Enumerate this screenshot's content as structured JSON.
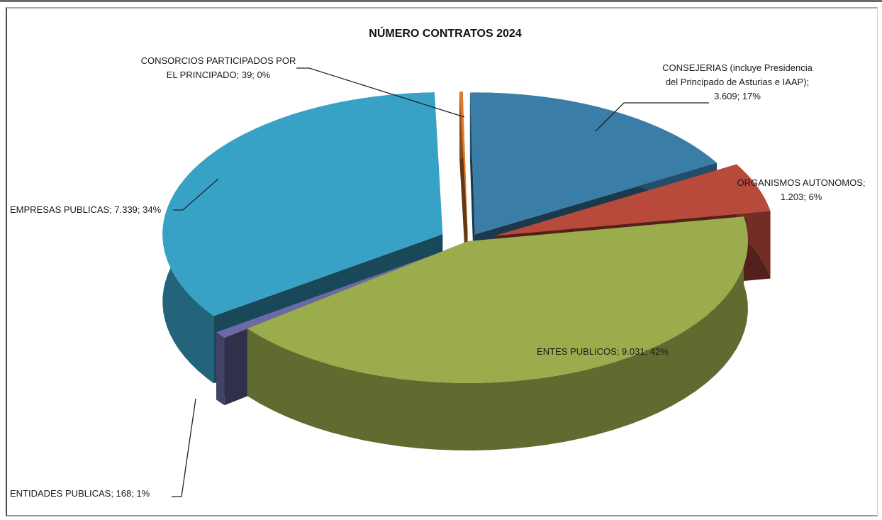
{
  "chart_data": {
    "type": "pie",
    "title": "NÚMERO CONTRATOS 2024",
    "slices": [
      {
        "label_lines": [
          "CONSEJERIAS (incluye Presidencia",
          "del Principado de Asturias e IAAP);",
          "3.609; 17%"
        ],
        "name": "CONSEJERIAS (incluye Presidencia del Principado de Asturias e IAAP)",
        "value": 3609,
        "percent": 17,
        "color": "#3a7ea8"
      },
      {
        "label_lines": [
          "ORGANISMOS AUTONOMOS;",
          "1.203; 6%"
        ],
        "name": "ORGANISMOS AUTONOMOS",
        "value": 1203,
        "percent": 6,
        "color": "#b84a3c"
      },
      {
        "label_lines": [
          "ENTES PUBLICOS; 9.031; 42%"
        ],
        "name": "ENTES PUBLICOS",
        "value": 9031,
        "percent": 42,
        "color": "#9bac4c"
      },
      {
        "label_lines": [
          "ENTIDADES PUBLICAS; 168; 1%"
        ],
        "name": "ENTIDADES PUBLICAS",
        "value": 168,
        "percent": 1,
        "color": "#6a6aa6"
      },
      {
        "label_lines": [
          "EMPRESAS PUBLICAS; 7.339; 34%"
        ],
        "name": "EMPRESAS PUBLICAS",
        "value": 7339,
        "percent": 34,
        "color": "#38a2c6"
      },
      {
        "label_lines": [
          "CONSORCIOS PARTICIPADOS POR",
          "EL PRINCIPADO; 39; 0%"
        ],
        "name": "CONSORCIOS PARTICIPADOS POR EL PRINCIPADO",
        "value": 39,
        "percent": 0,
        "color": "#e07a2a"
      }
    ]
  }
}
